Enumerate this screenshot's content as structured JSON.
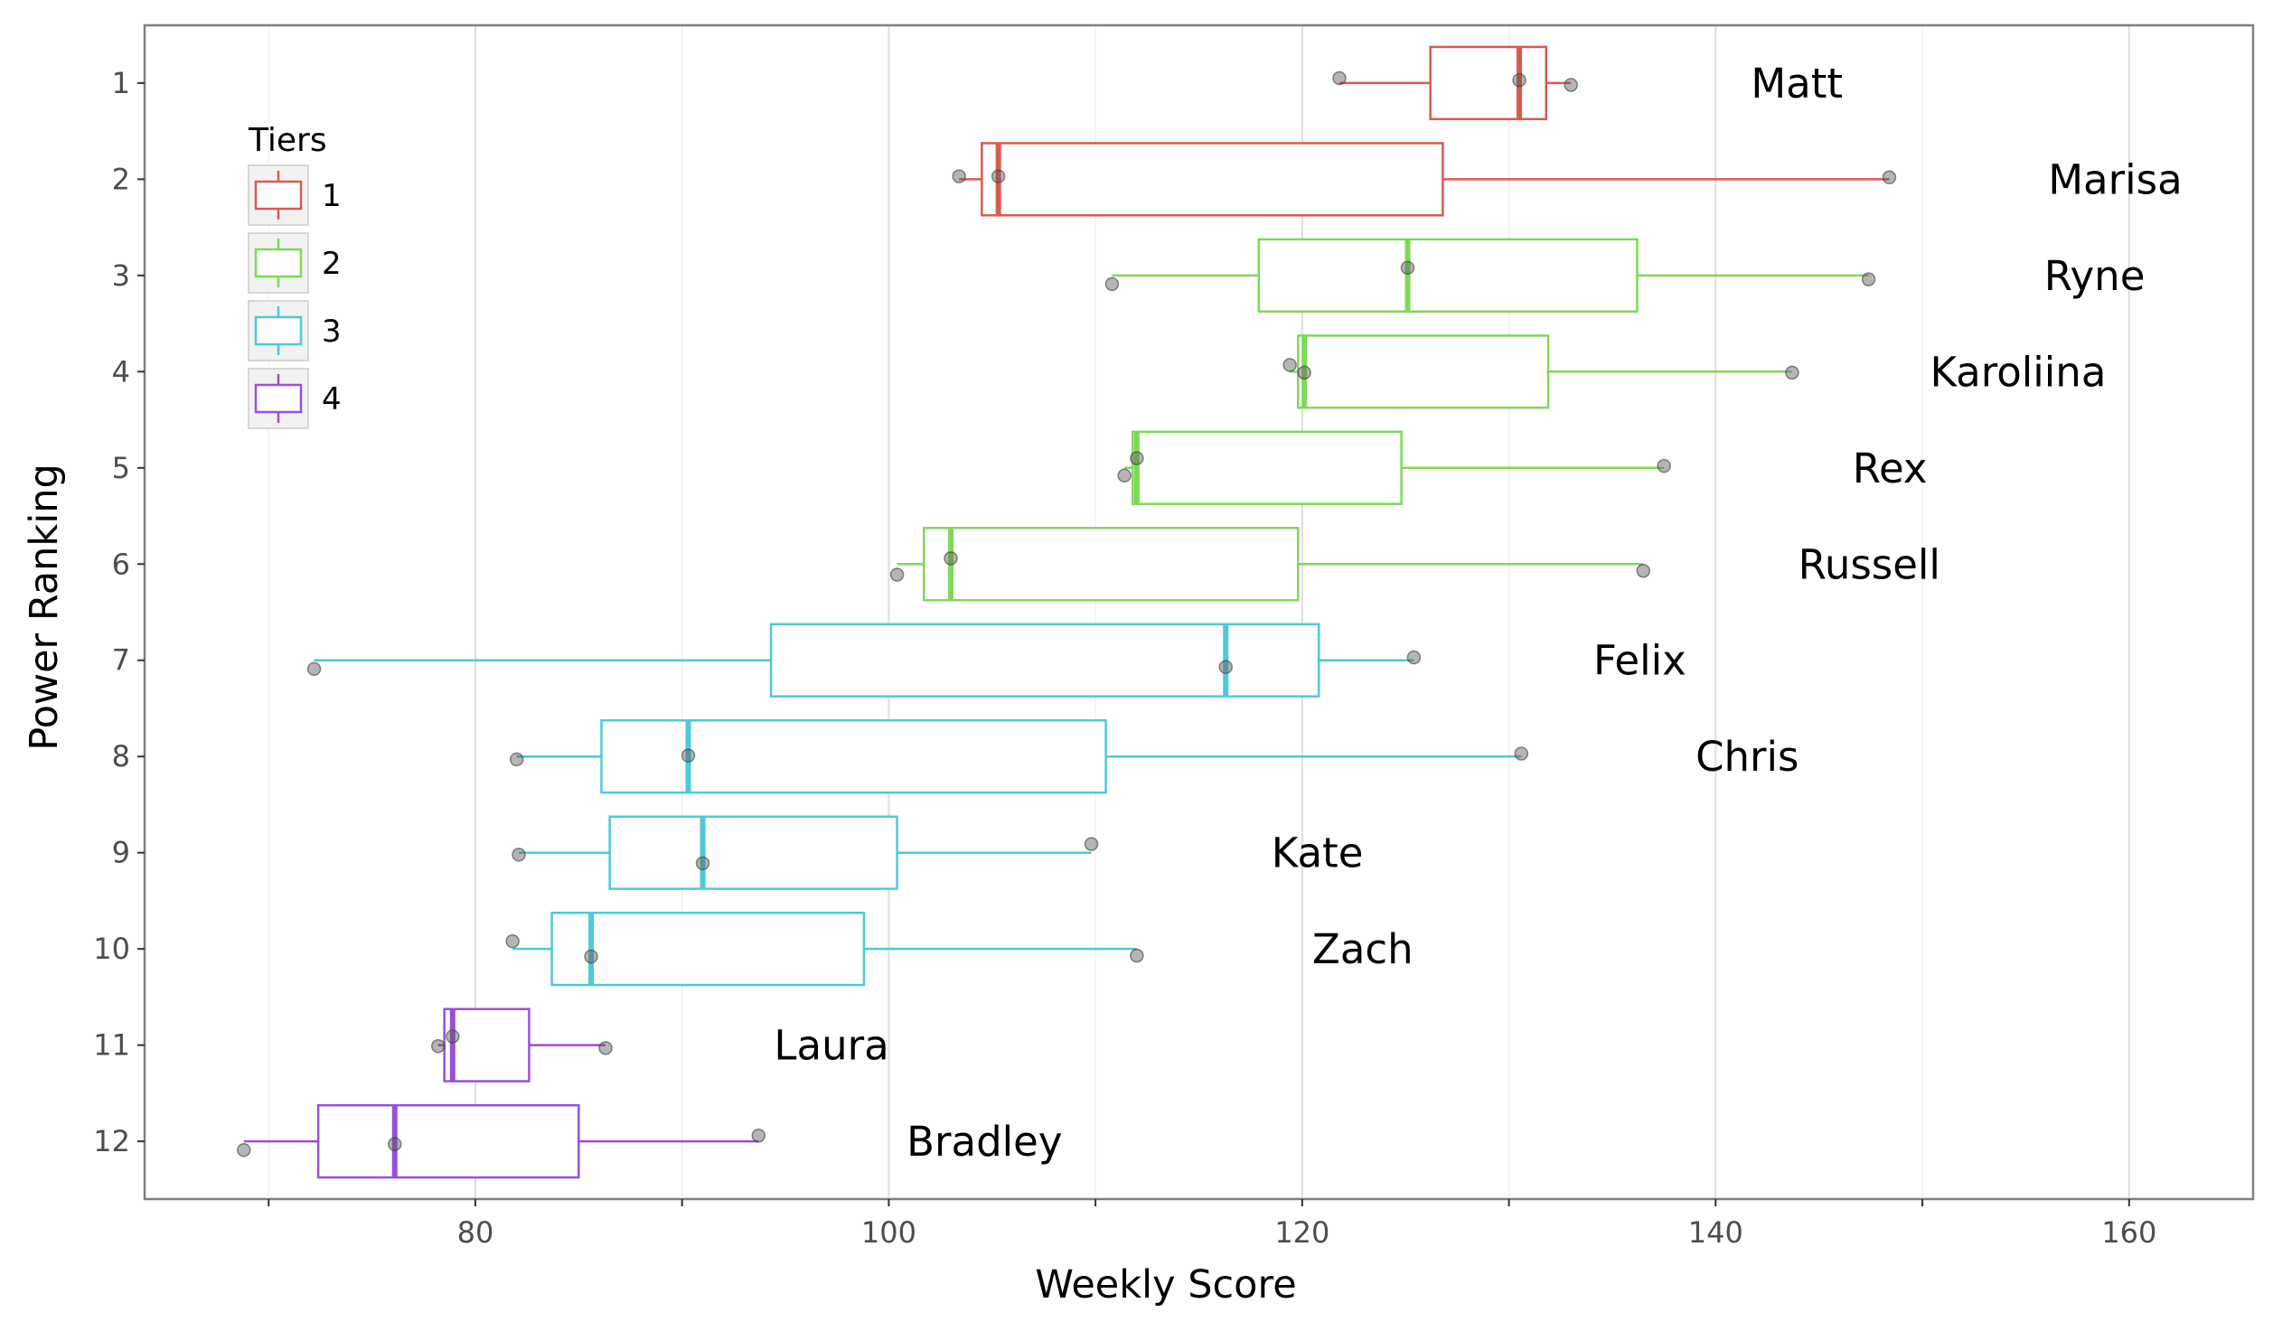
{
  "chart_data": {
    "type": "boxplot",
    "xlabel": "Weekly Score",
    "ylabel": "Power Ranking",
    "xlim": [
      64,
      166
    ],
    "x_ticks": [
      80,
      100,
      120,
      140,
      160
    ],
    "ylim": [
      0.4,
      12.6
    ],
    "y_ticks": [
      1,
      2,
      3,
      4,
      5,
      6,
      7,
      8,
      9,
      10,
      11,
      12
    ],
    "orientation": "horizontal",
    "grid": true,
    "legend": {
      "title": "Tiers",
      "position": "top-left",
      "items": [
        {
          "label": "1",
          "color": "#d95a4e"
        },
        {
          "label": "2",
          "color": "#7ed957"
        },
        {
          "label": "3",
          "color": "#4ec9d9"
        },
        {
          "label": "4",
          "color": "#9a4fd9"
        }
      ]
    },
    "series": [
      {
        "rank": 1,
        "name": "Matt",
        "tier": "1",
        "min": 121.8,
        "q1": 126.2,
        "median": 130.5,
        "q3": 131.8,
        "max": 133.0,
        "points": [
          [
            121.8,
            0.95
          ],
          [
            130.5,
            0.97
          ],
          [
            133.0,
            1.02
          ]
        ]
      },
      {
        "rank": 2,
        "name": "Marisa",
        "tier": "1",
        "min": 103.4,
        "q1": 104.5,
        "median": 105.3,
        "q3": 126.8,
        "max": 148.4,
        "points": [
          [
            103.4,
            1.97
          ],
          [
            105.3,
            1.97
          ],
          [
            148.4,
            1.98
          ]
        ]
      },
      {
        "rank": 3,
        "name": "Ryne",
        "tier": "2",
        "min": 110.8,
        "q1": 117.9,
        "median": 125.1,
        "q3": 136.2,
        "max": 147.4,
        "points": [
          [
            110.8,
            3.09
          ],
          [
            125.1,
            2.92
          ],
          [
            147.4,
            3.04
          ]
        ]
      },
      {
        "rank": 4,
        "name": "Karoliina",
        "tier": "2",
        "min": 119.4,
        "q1": 119.8,
        "median": 120.1,
        "q3": 131.9,
        "max": 143.7,
        "points": [
          [
            119.4,
            3.93
          ],
          [
            120.1,
            4.01
          ],
          [
            143.7,
            4.01
          ]
        ]
      },
      {
        "rank": 5,
        "name": "Rex",
        "tier": "2",
        "min": 111.4,
        "q1": 111.8,
        "median": 112.0,
        "q3": 124.8,
        "max": 137.5,
        "points": [
          [
            111.4,
            5.08
          ],
          [
            112.0,
            4.9
          ],
          [
            137.5,
            4.98
          ]
        ]
      },
      {
        "rank": 6,
        "name": "Russell",
        "tier": "2",
        "min": 100.4,
        "q1": 101.7,
        "median": 103.0,
        "q3": 119.8,
        "max": 136.5,
        "points": [
          [
            100.4,
            6.11
          ],
          [
            103.0,
            5.94
          ],
          [
            136.5,
            6.07
          ]
        ]
      },
      {
        "rank": 7,
        "name": "Felix",
        "tier": "3",
        "min": 72.2,
        "q1": 94.3,
        "median": 116.3,
        "q3": 120.8,
        "max": 125.4,
        "points": [
          [
            72.2,
            7.09
          ],
          [
            116.3,
            7.07
          ],
          [
            125.4,
            6.97
          ]
        ]
      },
      {
        "rank": 8,
        "name": "Chris",
        "tier": "3",
        "min": 82.0,
        "q1": 86.1,
        "median": 90.3,
        "q3": 110.5,
        "max": 130.6,
        "points": [
          [
            82.0,
            8.03
          ],
          [
            90.3,
            7.99
          ],
          [
            130.6,
            7.97
          ]
        ]
      },
      {
        "rank": 9,
        "name": "Kate",
        "tier": "3",
        "min": 82.1,
        "q1": 86.5,
        "median": 91.0,
        "q3": 100.4,
        "max": 109.8,
        "points": [
          [
            82.1,
            9.02
          ],
          [
            91.0,
            9.11
          ],
          [
            109.8,
            8.91
          ]
        ]
      },
      {
        "rank": 10,
        "name": "Zach",
        "tier": "3",
        "min": 81.8,
        "q1": 83.7,
        "median": 85.6,
        "q3": 98.8,
        "max": 112.0,
        "points": [
          [
            81.8,
            9.92
          ],
          [
            85.6,
            10.08
          ],
          [
            112.0,
            10.07
          ]
        ]
      },
      {
        "rank": 11,
        "name": "Laura",
        "tier": "4",
        "min": 78.2,
        "q1": 78.5,
        "median": 78.9,
        "q3": 82.6,
        "max": 86.3,
        "points": [
          [
            78.2,
            11.01
          ],
          [
            78.9,
            10.91
          ],
          [
            86.3,
            11.03
          ]
        ]
      },
      {
        "rank": 12,
        "name": "Bradley",
        "tier": "4",
        "min": 68.8,
        "q1": 72.4,
        "median": 76.1,
        "q3": 85.0,
        "max": 93.7,
        "points": [
          [
            68.8,
            12.09
          ],
          [
            76.1,
            12.03
          ],
          [
            93.7,
            11.94
          ]
        ]
      }
    ]
  }
}
